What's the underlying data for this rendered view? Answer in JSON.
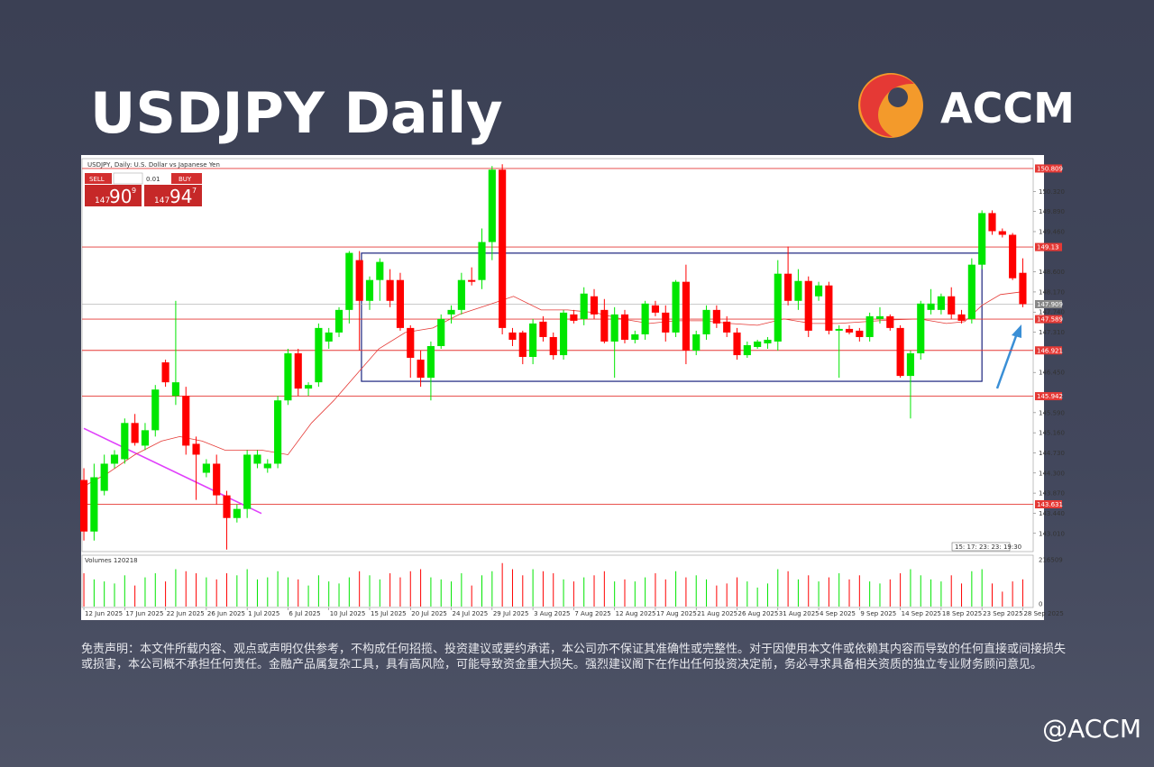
{
  "title": "USDJPY Daily",
  "brand": "ACCM",
  "handle": "@ACCM",
  "disclaimer": "免责声明：本文件所载内容、观点或声明仅供参考，不构成任何招揽、投资建议或要约承诺，本公司亦不保证其准确性或完整性。对于因使用本文件或依赖其内容而导致的任何直接或间接损失或损害，本公司概不承担任何责任。金融产品属复杂工具，具有高风险，可能导致资金重大损失。强烈建议阁下在作出任何投资决定前，务必寻求具备相关资质的独立专业财务顾问意见。",
  "chart_data": {
    "type": "candlestick",
    "title": "USDJPY, Daily:  U.S. Dollar vs Japanese Yen",
    "trade_panel": {
      "sell": "SELL",
      "buy": "BUY",
      "lot": "0.01",
      "sell_price": [
        "147",
        "90",
        "9"
      ],
      "buy_price": [
        "147",
        "94",
        "7"
      ]
    },
    "countdown": "15: 17: 23: 23: 19:30",
    "up_color": "#00e600",
    "down_color": "#ff0000",
    "ylim": [
      142.62,
      151.02
    ],
    "xlim": [
      -0.18,
      93.02
    ],
    "yticks": [
      {
        "value": 143.01,
        "label": "143.010"
      },
      {
        "value": 143.44,
        "label": "143.440"
      },
      {
        "value": 143.87,
        "label": "143.870"
      },
      {
        "value": 144.3,
        "label": "144.300"
      },
      {
        "value": 144.73,
        "label": "144.730"
      },
      {
        "value": 145.16,
        "label": "145.160"
      },
      {
        "value": 145.59,
        "label": "145.590"
      },
      {
        "value": 146.45,
        "label": "146.450"
      },
      {
        "value": 147.31,
        "label": "147.310"
      },
      {
        "value": 147.74,
        "label": "147.740"
      },
      {
        "value": 148.17,
        "label": "148.170"
      },
      {
        "value": 148.6,
        "label": "148.600"
      },
      {
        "value": 149.46,
        "label": "149.460"
      },
      {
        "value": 149.89,
        "label": "149.890"
      },
      {
        "value": 150.32,
        "label": "150.320"
      }
    ],
    "levels": [
      150.809,
      149.13,
      147.589,
      146.921,
      145.942,
      143.631
    ],
    "current_price": 147.909,
    "xticks": [
      {
        "value": 0,
        "label": "12 Jun 2025"
      },
      {
        "value": 4,
        "label": "17 Jun 2025"
      },
      {
        "value": 8,
        "label": "22 Jun 2025"
      },
      {
        "value": 12,
        "label": "26 Jun 2025"
      },
      {
        "value": 16,
        "label": "1 Jul 2025"
      },
      {
        "value": 20,
        "label": "6 Jul 2025"
      },
      {
        "value": 24,
        "label": "10 Jul 2025"
      },
      {
        "value": 28,
        "label": "15 Jul 2025"
      },
      {
        "value": 32,
        "label": "20 Jul 2025"
      },
      {
        "value": 36,
        "label": "24 Jul 2025"
      },
      {
        "value": 40,
        "label": "29 Jul 2025"
      },
      {
        "value": 44,
        "label": "3 Aug 2025"
      },
      {
        "value": 48,
        "label": "7 Aug 2025"
      },
      {
        "value": 52,
        "label": "12 Aug 2025"
      },
      {
        "value": 56,
        "label": "17 Aug 2025"
      },
      {
        "value": 60,
        "label": "21 Aug 2025"
      },
      {
        "value": 64,
        "label": "26 Aug 2025"
      },
      {
        "value": 68,
        "label": "31 Aug 2025"
      },
      {
        "value": 72,
        "label": "4 Sep 2025"
      },
      {
        "value": 76,
        "label": "9 Sep 2025"
      },
      {
        "value": 80,
        "label": "14 Sep 2025"
      },
      {
        "value": 84,
        "label": "18 Sep 2025"
      },
      {
        "value": 88,
        "label": "23 Sep 2025"
      },
      {
        "value": 92,
        "label": "28 Sep 2025"
      }
    ],
    "ohlc": [
      [
        144.151,
        144.402,
        142.856,
        143.049
      ],
      [
        143.049,
        144.499,
        142.856,
        144.209
      ],
      [
        143.919,
        144.692,
        143.822,
        144.499
      ],
      [
        144.499,
        144.789,
        144.402,
        144.692
      ],
      [
        144.595,
        145.466,
        144.499,
        145.369
      ],
      [
        145.369,
        145.562,
        144.885,
        144.943
      ],
      [
        144.885,
        145.369,
        144.789,
        145.214
      ],
      [
        145.214,
        146.181,
        145.079,
        146.084
      ],
      [
        146.665,
        146.723,
        146.143,
        146.239
      ],
      [
        145.949,
        147.98,
        145.755,
        146.239
      ],
      [
        145.949,
        146.143,
        144.692,
        144.885
      ],
      [
        144.924,
        145.079,
        143.725,
        144.692
      ],
      [
        144.305,
        144.595,
        144.209,
        144.499
      ],
      [
        144.499,
        144.692,
        143.628,
        143.822
      ],
      [
        143.822,
        143.919,
        142.663,
        143.338
      ],
      [
        143.338,
        143.628,
        143.242,
        143.532
      ],
      [
        143.532,
        144.789,
        143.338,
        144.692
      ],
      [
        144.499,
        144.789,
        144.402,
        144.692
      ],
      [
        144.402,
        144.595,
        144.305,
        144.499
      ],
      [
        144.499,
        145.949,
        144.402,
        145.852
      ],
      [
        145.852,
        146.955,
        145.755,
        146.858
      ],
      [
        146.858,
        146.955,
        145.949,
        146.104
      ],
      [
        146.104,
        146.239,
        145.949,
        146.181
      ],
      [
        146.239,
        147.496,
        146.143,
        147.4
      ],
      [
        147.11,
        147.4,
        146.955,
        147.303
      ],
      [
        147.303,
        147.844,
        147.206,
        147.786
      ],
      [
        147.786,
        149.044,
        147.496,
        149.005
      ],
      [
        148.85,
        149.044,
        146.916,
        147.98
      ],
      [
        147.98,
        148.502,
        147.786,
        148.425
      ],
      [
        148.425,
        148.889,
        147.98,
        148.812
      ],
      [
        148.425,
        148.657,
        147.844,
        147.98
      ],
      [
        148.425,
        148.579,
        147.342,
        147.4
      ],
      [
        147.4,
        147.458,
        146.336,
        146.762
      ],
      [
        146.723,
        146.916,
        146.143,
        146.336
      ],
      [
        146.336,
        147.11,
        145.852,
        147.013
      ],
      [
        147.013,
        147.69,
        146.955,
        147.593
      ],
      [
        147.69,
        147.883,
        147.496,
        147.786
      ],
      [
        147.786,
        148.579,
        147.69,
        148.425
      ],
      [
        148.425,
        148.696,
        148.309,
        148.387
      ],
      [
        148.425,
        149.527,
        148.231,
        149.237
      ],
      [
        149.237,
        150.862,
        148.85,
        150.784
      ],
      [
        150.784,
        150.9,
        147.264,
        147.4
      ],
      [
        147.303,
        147.4,
        147.013,
        147.148
      ],
      [
        147.303,
        147.342,
        146.626,
        146.781
      ],
      [
        146.781,
        147.593,
        146.626,
        147.496
      ],
      [
        147.535,
        147.651,
        147.11,
        147.206
      ],
      [
        147.206,
        147.303,
        146.723,
        146.819
      ],
      [
        146.819,
        147.786,
        146.723,
        147.728
      ],
      [
        147.69,
        147.786,
        147.496,
        147.554
      ],
      [
        147.593,
        148.27,
        147.458,
        148.135
      ],
      [
        148.077,
        148.231,
        147.593,
        147.69
      ],
      [
        147.786,
        148.019,
        147.071,
        147.11
      ],
      [
        147.11,
        147.844,
        146.336,
        147.69
      ],
      [
        147.69,
        147.786,
        147.071,
        147.148
      ],
      [
        147.148,
        147.342,
        147.071,
        147.264
      ],
      [
        147.264,
        147.98,
        147.148,
        147.922
      ],
      [
        147.883,
        147.98,
        147.651,
        147.728
      ],
      [
        147.728,
        147.883,
        147.11,
        147.303
      ],
      [
        147.303,
        148.425,
        147.206,
        148.387
      ],
      [
        148.387,
        148.753,
        146.626,
        146.916
      ],
      [
        146.916,
        147.342,
        146.819,
        147.264
      ],
      [
        147.264,
        147.883,
        147.148,
        147.786
      ],
      [
        147.786,
        147.883,
        147.4,
        147.496
      ],
      [
        147.535,
        147.651,
        147.206,
        147.303
      ],
      [
        147.303,
        147.4,
        146.723,
        146.819
      ],
      [
        146.819,
        147.11,
        146.762,
        147.032
      ],
      [
        146.994,
        147.148,
        146.955,
        147.11
      ],
      [
        147.071,
        147.206,
        146.955,
        147.148
      ],
      [
        147.11,
        148.85,
        146.916,
        148.56
      ],
      [
        148.56,
        149.14,
        147.883,
        147.98
      ],
      [
        147.98,
        148.657,
        147.786,
        148.405
      ],
      [
        148.405,
        148.502,
        147.206,
        147.342
      ],
      [
        148.077,
        148.387,
        147.98,
        148.309
      ],
      [
        148.309,
        148.387,
        147.264,
        147.342
      ],
      [
        147.342,
        147.458,
        146.336,
        147.38
      ],
      [
        147.38,
        147.458,
        147.264,
        147.303
      ],
      [
        147.342,
        147.4,
        147.11,
        147.206
      ],
      [
        147.206,
        147.728,
        147.11,
        147.651
      ],
      [
        147.593,
        147.844,
        147.496,
        147.651
      ],
      [
        147.651,
        147.69,
        147.342,
        147.4
      ],
      [
        147.4,
        147.458,
        146.336,
        146.375
      ],
      [
        146.375,
        146.916,
        145.466,
        146.858
      ],
      [
        146.858,
        147.98,
        146.723,
        147.922
      ],
      [
        147.786,
        148.231,
        147.69,
        147.922
      ],
      [
        147.786,
        148.135,
        147.69,
        148.077
      ],
      [
        148.077,
        148.27,
        147.593,
        147.69
      ],
      [
        147.69,
        147.786,
        147.496,
        147.554
      ],
      [
        147.593,
        148.889,
        147.496,
        148.753
      ],
      [
        148.753,
        149.914,
        148.657,
        149.856
      ],
      [
        149.856,
        149.914,
        149.392,
        149.469
      ],
      [
        149.469,
        149.527,
        149.334,
        149.392
      ],
      [
        149.392,
        149.43,
        148.425,
        148.463
      ],
      [
        148.579,
        148.889,
        147.844,
        147.909
      ]
    ],
    "moving_average": {
      "x": [
        0,
        2.4,
        5.0,
        7.6,
        9.4,
        11.6,
        13.8,
        17.4,
        20.0,
        22.3,
        24.5,
        27.2,
        28.9,
        31.5,
        34.2,
        36.8,
        39.5,
        42.1,
        44.8,
        47.4,
        50.1,
        52.7,
        55.4,
        58.0,
        60.7,
        63.3,
        66.0,
        68.6,
        71.3,
        73.9,
        76.6,
        79.2,
        81.9,
        84.5,
        86.3,
        88.0,
        89.8,
        91.9
      ],
      "values": [
        144.015,
        144.305,
        144.692,
        144.982,
        145.079,
        144.982,
        144.789,
        144.789,
        144.692,
        145.369,
        145.852,
        146.529,
        146.955,
        147.303,
        147.4,
        147.69,
        147.883,
        148.077,
        147.786,
        147.786,
        147.728,
        147.593,
        147.496,
        147.554,
        147.554,
        147.496,
        147.458,
        147.593,
        147.496,
        147.496,
        147.535,
        147.574,
        147.593,
        147.496,
        147.535,
        147.883,
        148.115,
        148.173
      ]
    },
    "range_box": {
      "x": [
        27.2,
        88.0
      ],
      "y": [
        146.26,
        149.0
      ]
    },
    "trendline": {
      "x": [
        0,
        17.4
      ],
      "y": [
        145.253,
        143.435
      ]
    },
    "volume_label": "Volumes 120218",
    "volume_ticks": [
      0,
      216509
    ],
    "volumes": [
      150000,
      120000,
      110000,
      100000,
      140000,
      90000,
      130000,
      150000,
      110000,
      170000,
      160000,
      150000,
      130000,
      120000,
      150000,
      140000,
      170000,
      120000,
      130000,
      160000,
      130000,
      120000,
      90000,
      140000,
      110000,
      100000,
      130000,
      160000,
      140000,
      120000,
      150000,
      130000,
      160000,
      170000,
      130000,
      120000,
      110000,
      150000,
      90000,
      140000,
      160000,
      200000,
      170000,
      140000,
      170000,
      160000,
      150000,
      120000,
      110000,
      130000,
      140000,
      160000,
      110000,
      120000,
      110000,
      130000,
      150000,
      120000,
      160000,
      130000,
      140000,
      120000,
      90000,
      100000,
      130000,
      110000,
      80000,
      100000,
      170000,
      160000,
      120000,
      140000,
      110000,
      130000,
      150000,
      120000,
      140000,
      110000,
      100000,
      120000,
      150000,
      170000,
      140000,
      120000,
      110000,
      140000,
      100000,
      160000,
      170000,
      100000,
      60000,
      110000,
      120218
    ]
  }
}
